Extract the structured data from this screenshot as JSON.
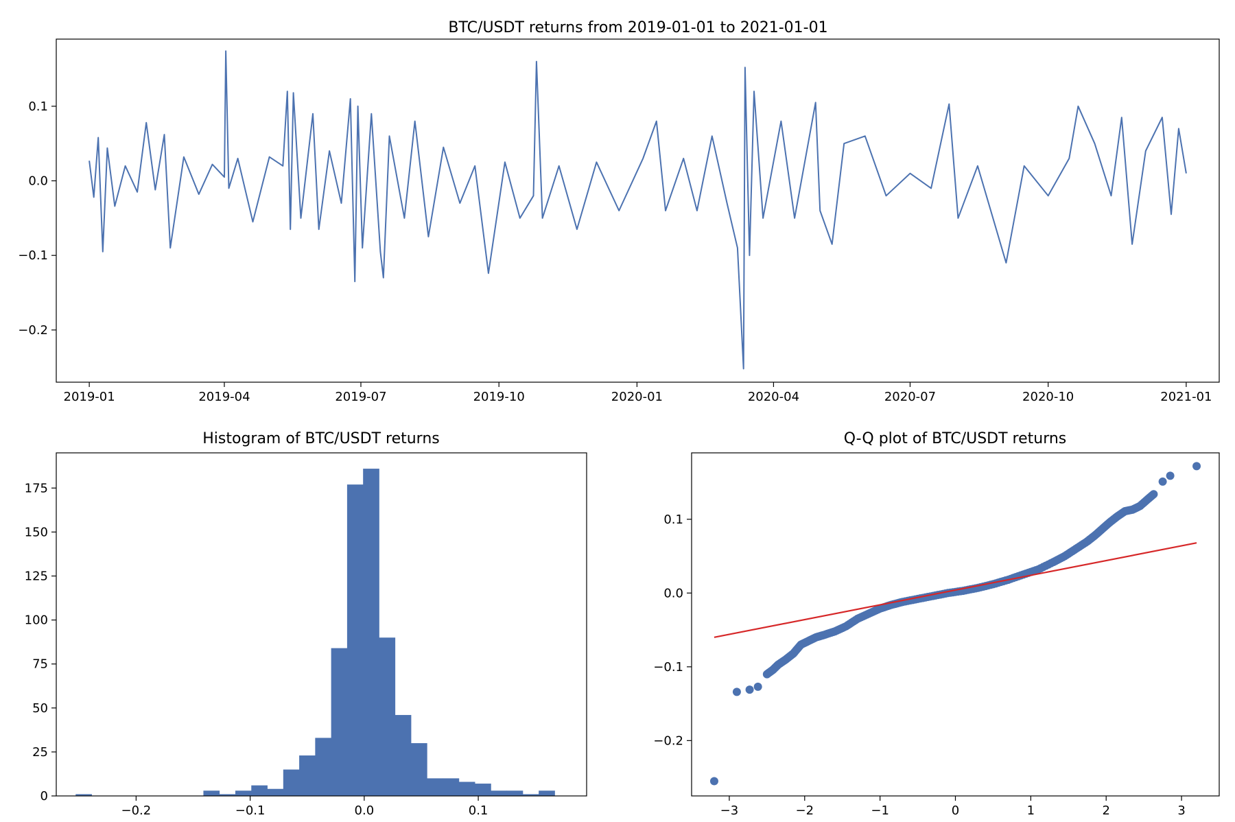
{
  "chart_data": [
    {
      "type": "line",
      "title": "BTC/USDT returns from 2019-01-01 to 2021-01-01",
      "xlabel": "",
      "ylabel": "",
      "xlim": [
        "2018-12-10",
        "2021-01-23"
      ],
      "ylim": [
        -0.27,
        0.19
      ],
      "x_ticks": [
        "2019-01",
        "2019-04",
        "2019-07",
        "2019-10",
        "2020-01",
        "2020-04",
        "2020-07",
        "2020-10",
        "2021-01"
      ],
      "y_ticks": [
        -0.2,
        -0.1,
        0.0,
        0.1
      ],
      "color": "#4c72b0",
      "series": [
        {
          "x_start": "2019-01-01",
          "x_end": "2021-01-01",
          "points": [
            [
              "2019-01-01",
              0.027
            ],
            [
              "2019-01-04",
              -0.022
            ],
            [
              "2019-01-07",
              0.058
            ],
            [
              "2019-01-10",
              -0.095
            ],
            [
              "2019-01-13",
              0.044
            ],
            [
              "2019-01-18",
              -0.034
            ],
            [
              "2019-01-25",
              0.02
            ],
            [
              "2019-02-02",
              -0.015
            ],
            [
              "2019-02-08",
              0.078
            ],
            [
              "2019-02-14",
              -0.012
            ],
            [
              "2019-02-20",
              0.062
            ],
            [
              "2019-02-24",
              -0.09
            ],
            [
              "2019-03-05",
              0.032
            ],
            [
              "2019-03-15",
              -0.018
            ],
            [
              "2019-03-24",
              0.022
            ],
            [
              "2019-04-01",
              0.005
            ],
            [
              "2019-04-02",
              0.174
            ],
            [
              "2019-04-04",
              -0.01
            ],
            [
              "2019-04-10",
              0.03
            ],
            [
              "2019-04-20",
              -0.055
            ],
            [
              "2019-05-01",
              0.032
            ],
            [
              "2019-05-10",
              0.02
            ],
            [
              "2019-05-13",
              0.12
            ],
            [
              "2019-05-15",
              -0.065
            ],
            [
              "2019-05-17",
              0.118
            ],
            [
              "2019-05-22",
              -0.05
            ],
            [
              "2019-05-30",
              0.09
            ],
            [
              "2019-06-03",
              -0.065
            ],
            [
              "2019-06-10",
              0.04
            ],
            [
              "2019-06-18",
              -0.03
            ],
            [
              "2019-06-24",
              0.11
            ],
            [
              "2019-06-27",
              -0.135
            ],
            [
              "2019-06-29",
              0.1
            ],
            [
              "2019-07-02",
              -0.09
            ],
            [
              "2019-07-08",
              0.09
            ],
            [
              "2019-07-14",
              -0.095
            ],
            [
              "2019-07-16",
              -0.13
            ],
            [
              "2019-07-20",
              0.06
            ],
            [
              "2019-07-30",
              -0.05
            ],
            [
              "2019-08-06",
              0.08
            ],
            [
              "2019-08-15",
              -0.075
            ],
            [
              "2019-08-25",
              0.045
            ],
            [
              "2019-09-05",
              -0.03
            ],
            [
              "2019-09-15",
              0.02
            ],
            [
              "2019-09-24",
              -0.124
            ],
            [
              "2019-10-05",
              0.025
            ],
            [
              "2019-10-15",
              -0.05
            ],
            [
              "2019-10-24",
              -0.02
            ],
            [
              "2019-10-26",
              0.16
            ],
            [
              "2019-10-30",
              -0.05
            ],
            [
              "2019-11-10",
              0.02
            ],
            [
              "2019-11-22",
              -0.065
            ],
            [
              "2019-12-05",
              0.025
            ],
            [
              "2019-12-20",
              -0.04
            ],
            [
              "2020-01-05",
              0.03
            ],
            [
              "2020-01-14",
              0.08
            ],
            [
              "2020-01-20",
              -0.04
            ],
            [
              "2020-02-01",
              0.03
            ],
            [
              "2020-02-10",
              -0.04
            ],
            [
              "2020-02-20",
              0.06
            ],
            [
              "2020-03-01",
              -0.03
            ],
            [
              "2020-03-08",
              -0.09
            ],
            [
              "2020-03-12",
              -0.252
            ],
            [
              "2020-03-13",
              0.152
            ],
            [
              "2020-03-16",
              -0.1
            ],
            [
              "2020-03-19",
              0.12
            ],
            [
              "2020-03-25",
              -0.05
            ],
            [
              "2020-04-06",
              0.08
            ],
            [
              "2020-04-15",
              -0.05
            ],
            [
              "2020-04-29",
              0.105
            ],
            [
              "2020-05-02",
              -0.04
            ],
            [
              "2020-05-10",
              -0.085
            ],
            [
              "2020-05-18",
              0.05
            ],
            [
              "2020-06-01",
              0.06
            ],
            [
              "2020-06-15",
              -0.02
            ],
            [
              "2020-07-01",
              0.01
            ],
            [
              "2020-07-15",
              -0.01
            ],
            [
              "2020-07-27",
              0.103
            ],
            [
              "2020-08-02",
              -0.05
            ],
            [
              "2020-08-15",
              0.02
            ],
            [
              "2020-09-03",
              -0.11
            ],
            [
              "2020-09-15",
              0.02
            ],
            [
              "2020-10-01",
              -0.02
            ],
            [
              "2020-10-15",
              0.03
            ],
            [
              "2020-10-21",
              0.1
            ],
            [
              "2020-11-01",
              0.05
            ],
            [
              "2020-11-12",
              -0.02
            ],
            [
              "2020-11-19",
              0.085
            ],
            [
              "2020-11-26",
              -0.085
            ],
            [
              "2020-12-05",
              0.04
            ],
            [
              "2020-12-16",
              0.085
            ],
            [
              "2020-12-22",
              -0.045
            ],
            [
              "2020-12-27",
              0.07
            ],
            [
              "2021-01-01",
              0.01
            ]
          ]
        }
      ]
    },
    {
      "type": "bar",
      "title": "Histogram of BTC/USDT returns",
      "xlabel": "",
      "ylabel": "",
      "xlim": [
        -0.27,
        0.195
      ],
      "ylim": [
        0,
        195
      ],
      "x_ticks": [
        -0.2,
        -0.1,
        0.0,
        0.1
      ],
      "y_ticks": [
        0,
        25,
        50,
        75,
        100,
        125,
        150,
        175
      ],
      "color": "#4c72b0",
      "bin_edges": [
        -0.253,
        -0.239,
        -0.225,
        -0.211,
        -0.197,
        -0.183,
        -0.169,
        -0.155,
        -0.141,
        -0.127,
        -0.113,
        -0.099,
        -0.085,
        -0.071,
        -0.057,
        -0.043,
        -0.029,
        -0.015,
        -0.001,
        0.013,
        0.027,
        0.041,
        0.055,
        0.069,
        0.083,
        0.097,
        0.111,
        0.125,
        0.139,
        0.153,
        0.167
      ],
      "counts": [
        1,
        0,
        0,
        0,
        0,
        0,
        0,
        0,
        3,
        1,
        3,
        6,
        4,
        15,
        23,
        33,
        84,
        177,
        186,
        90,
        46,
        30,
        10,
        10,
        8,
        7,
        3,
        3,
        1,
        3
      ]
    },
    {
      "type": "scatter",
      "title": "Q-Q plot of BTC/USDT returns",
      "xlabel": "",
      "ylabel": "",
      "xlim": [
        -3.5,
        3.5
      ],
      "ylim": [
        -0.275,
        0.19
      ],
      "x_ticks": [
        -3,
        -2,
        -1,
        0,
        1,
        2,
        3
      ],
      "y_ticks": [
        -0.2,
        -0.1,
        0.0,
        0.1
      ],
      "point_color": "#4c72b0",
      "line_color": "#d62728",
      "reference_line": {
        "x": [
          -3.2,
          3.2
        ],
        "y": [
          -0.06,
          0.068
        ]
      },
      "points": [
        [
          -3.2,
          -0.255
        ],
        [
          -2.9,
          -0.134
        ],
        [
          -2.73,
          -0.131
        ],
        [
          -2.62,
          -0.127
        ],
        [
          -2.5,
          -0.11
        ],
        [
          -2.42,
          -0.104
        ],
        [
          -2.35,
          -0.097
        ],
        [
          -2.25,
          -0.09
        ],
        [
          -2.15,
          -0.082
        ],
        [
          -2.05,
          -0.07
        ],
        [
          -1.95,
          -0.065
        ],
        [
          -1.85,
          -0.06
        ],
        [
          -1.75,
          -0.057
        ],
        [
          -1.6,
          -0.052
        ],
        [
          -1.45,
          -0.045
        ],
        [
          -1.3,
          -0.035
        ],
        [
          -1.15,
          -0.028
        ],
        [
          -1.0,
          -0.021
        ],
        [
          -0.85,
          -0.016
        ],
        [
          -0.7,
          -0.012
        ],
        [
          -0.5,
          -0.008
        ],
        [
          -0.3,
          -0.004
        ],
        [
          -0.1,
          0.0
        ],
        [
          0.1,
          0.003
        ],
        [
          0.3,
          0.007
        ],
        [
          0.5,
          0.012
        ],
        [
          0.7,
          0.018
        ],
        [
          0.9,
          0.025
        ],
        [
          1.1,
          0.032
        ],
        [
          1.3,
          0.042
        ],
        [
          1.45,
          0.05
        ],
        [
          1.6,
          0.06
        ],
        [
          1.75,
          0.07
        ],
        [
          1.85,
          0.078
        ],
        [
          1.95,
          0.087
        ],
        [
          2.05,
          0.096
        ],
        [
          2.15,
          0.104
        ],
        [
          2.25,
          0.111
        ],
        [
          2.35,
          0.113
        ],
        [
          2.45,
          0.118
        ],
        [
          2.55,
          0.127
        ],
        [
          2.63,
          0.134
        ],
        [
          2.75,
          0.151
        ],
        [
          2.85,
          0.159
        ],
        [
          3.2,
          0.172
        ]
      ]
    }
  ]
}
